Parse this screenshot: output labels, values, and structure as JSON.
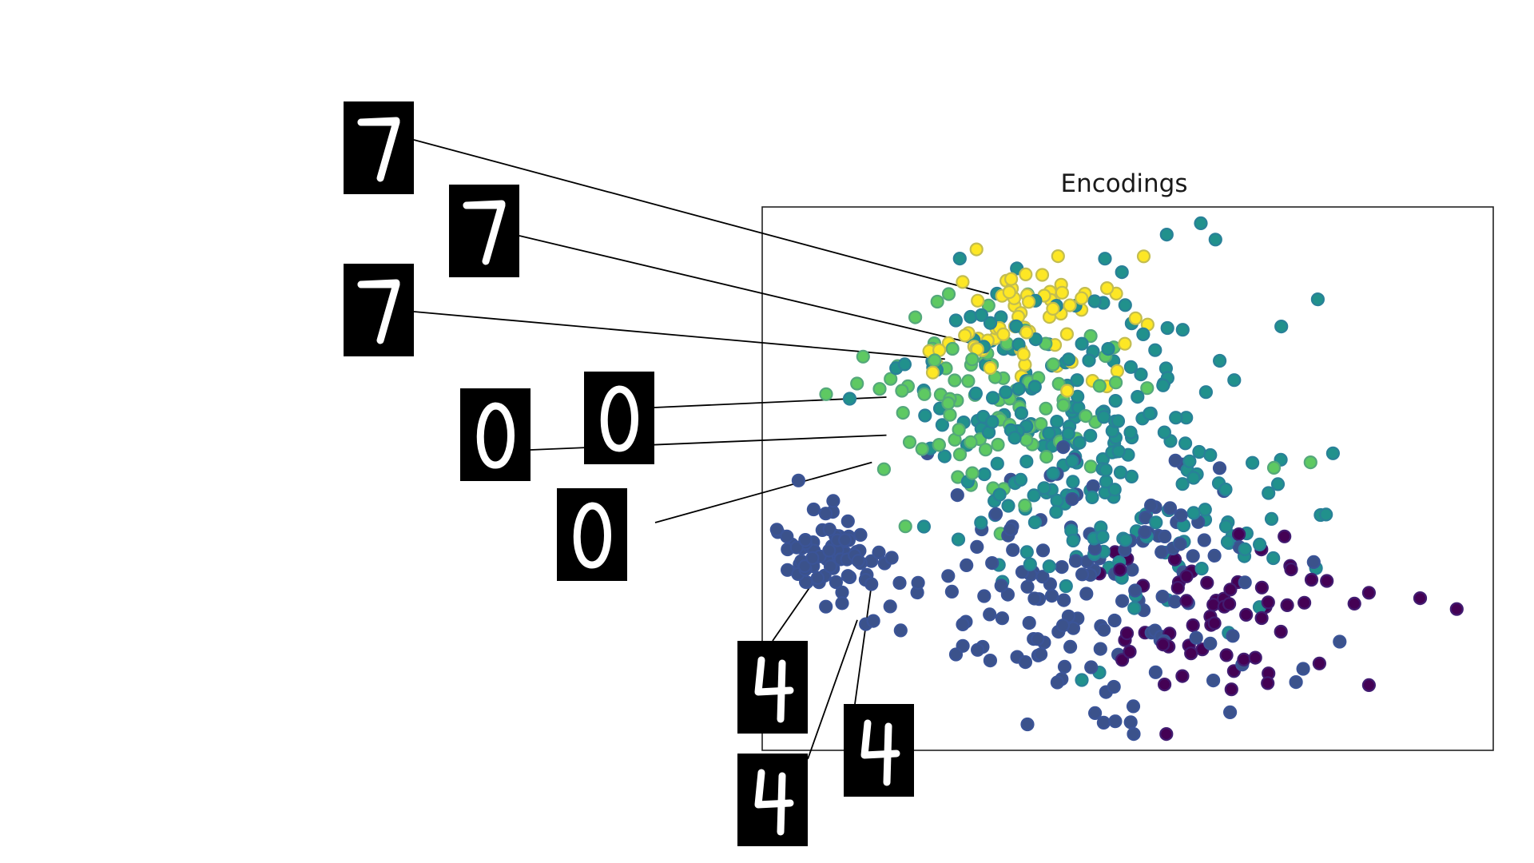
{
  "chart_data": {
    "type": "scatter",
    "title": "Encodings",
    "xlabel": "",
    "ylabel": "",
    "xlim": [
      0,
      100
    ],
    "ylim": [
      0,
      100
    ],
    "grid": false,
    "colormap": "viridis",
    "colors": {
      "class0": "#440154",
      "class1": "#3b528b",
      "class2": "#21918c",
      "class3": "#5ec962",
      "class4": "#fde725"
    },
    "clusters": [
      {
        "name": "",
        "color_class": "class4",
        "center": [
          36,
          79
        ],
        "spread": [
          7,
          6
        ],
        "count": 70,
        "seed": 11
      },
      {
        "name": "",
        "color_class": "class3",
        "center": [
          30,
          62
        ],
        "spread": [
          8,
          9
        ],
        "count": 90,
        "seed": 12
      },
      {
        "name": "",
        "color_class": "class2",
        "center": [
          40,
          60
        ],
        "spread": [
          11,
          13
        ],
        "count": 160,
        "seed": 13
      },
      {
        "name": "",
        "color_class": "class1",
        "center": [
          9,
          37
        ],
        "spread": [
          3.5,
          4.5
        ],
        "count": 70,
        "seed": 14
      },
      {
        "name": "",
        "color_class": "class1",
        "center": [
          42,
          30
        ],
        "spread": [
          13,
          11
        ],
        "count": 150,
        "seed": 15
      },
      {
        "name": "",
        "color_class": "class0",
        "center": [
          63,
          25
        ],
        "spread": [
          8,
          8
        ],
        "count": 60,
        "seed": 16
      },
      {
        "name": "",
        "color_class": "class2",
        "center": [
          55,
          42
        ],
        "spread": [
          12,
          10
        ],
        "count": 80,
        "seed": 17
      }
    ],
    "outliers": [
      {
        "x": 76,
        "y": 83,
        "color_class": "class2"
      },
      {
        "x": 71,
        "y": 78,
        "color_class": "class2"
      },
      {
        "x": 62,
        "y": 94,
        "color_class": "class2"
      },
      {
        "x": 60,
        "y": 97,
        "color_class": "class2"
      },
      {
        "x": 70,
        "y": 52,
        "color_class": "class3"
      },
      {
        "x": 75,
        "y": 53,
        "color_class": "class3"
      },
      {
        "x": 83,
        "y": 29,
        "color_class": "class0"
      },
      {
        "x": 90,
        "y": 28,
        "color_class": "class0"
      },
      {
        "x": 95,
        "y": 26,
        "color_class": "class0"
      },
      {
        "x": 81,
        "y": 27,
        "color_class": "class0"
      },
      {
        "x": 83,
        "y": 12,
        "color_class": "class0"
      },
      {
        "x": 74,
        "y": 15,
        "color_class": "class1"
      },
      {
        "x": 64,
        "y": 7,
        "color_class": "class1"
      },
      {
        "x": 79,
        "y": 20,
        "color_class": "class1"
      }
    ],
    "thumbnails": [
      {
        "digit": "7",
        "color_class": "class4",
        "x": 31,
        "y": 84
      },
      {
        "digit": "7",
        "color_class": "class4",
        "x": 28.5,
        "y": 75
      },
      {
        "digit": "7",
        "color_class": "class4",
        "x": 25,
        "y": 72
      },
      {
        "digit": "0",
        "color_class": "class3",
        "x": 17,
        "y": 65
      },
      {
        "digit": "0",
        "color_class": "class3",
        "x": 17,
        "y": 58
      },
      {
        "digit": "0",
        "color_class": "class3",
        "x": 15,
        "y": 53
      },
      {
        "digit": "4",
        "color_class": "class1",
        "x": 6.5,
        "y": 30
      },
      {
        "digit": "4",
        "color_class": "class1",
        "x": 13,
        "y": 24
      },
      {
        "digit": "4",
        "color_class": "class1",
        "x": 15,
        "y": 31
      }
    ]
  }
}
